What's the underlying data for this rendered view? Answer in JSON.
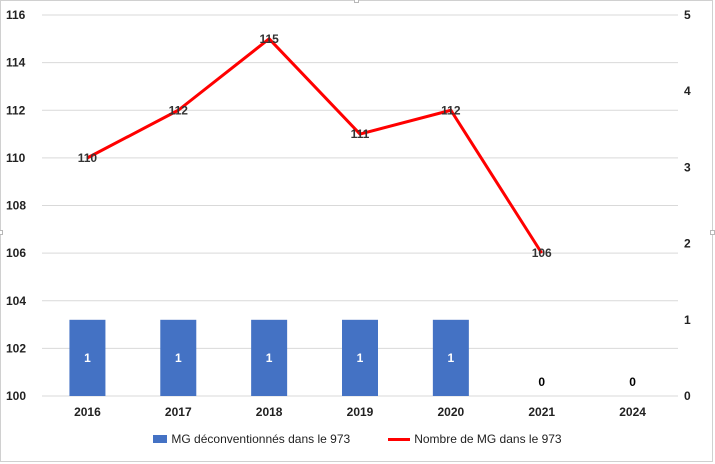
{
  "chart_data": {
    "type": "bar+line",
    "categories": [
      "2016",
      "2017",
      "2018",
      "2019",
      "2020",
      "2021",
      "2024"
    ],
    "left_axis": {
      "min": 100,
      "max": 116,
      "step": 2,
      "ticks": [
        "100",
        "102",
        "104",
        "106",
        "108",
        "110",
        "112",
        "114",
        "116"
      ]
    },
    "right_axis": {
      "min": 0,
      "max": 5,
      "step": 1,
      "ticks": [
        "0",
        "1",
        "2",
        "3",
        "4",
        "5"
      ]
    },
    "series": [
      {
        "name": "MG déconventionnés dans le 973",
        "type": "bar",
        "axis": "right",
        "color": "#4472C4",
        "values": [
          1,
          1,
          1,
          1,
          1,
          0,
          0
        ],
        "labels": [
          "1",
          "1",
          "1",
          "1",
          "1",
          "0",
          "0"
        ]
      },
      {
        "name": "Nombre de MG dans le 973",
        "type": "line",
        "axis": "left",
        "color": "#FF0000",
        "values": [
          110,
          112,
          115,
          111,
          112,
          106,
          null
        ],
        "labels": [
          "110",
          "112",
          "115",
          "111",
          "112",
          "106",
          ""
        ]
      }
    ],
    "grid": true,
    "legend": "bottom"
  }
}
